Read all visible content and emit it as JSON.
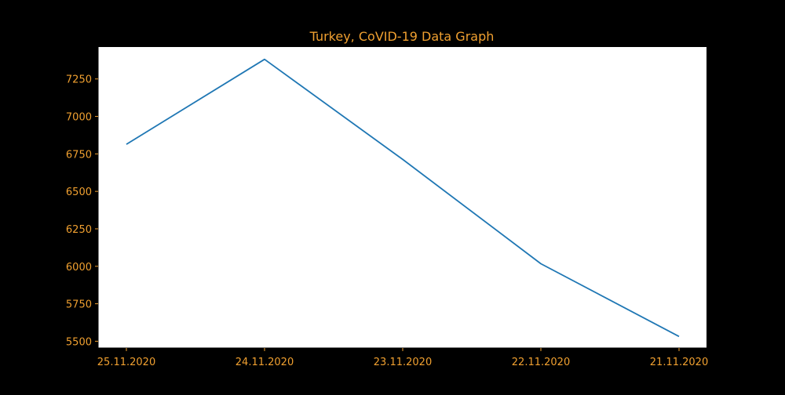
{
  "chart_data": {
    "type": "line",
    "title": "Turkey, CoVID-19 Data Graph",
    "xlabel": "",
    "ylabel": "",
    "categories": [
      "25.11.2020",
      "24.11.2020",
      "23.11.2020",
      "22.11.2020",
      "21.11.2020"
    ],
    "series": [
      {
        "values": [
          6814,
          7381,
          6713,
          6017,
          5532
        ]
      }
    ],
    "ylim": [
      5455,
      7463
    ],
    "yticks": [
      5500,
      5750,
      6000,
      6250,
      6500,
      6750,
      7000,
      7250
    ],
    "grid": false,
    "legend": "none",
    "colors": {
      "background": "#000000",
      "plot_area": "#ffffff",
      "text": "#f0a030",
      "line": "#1f77b4",
      "axis": "#000000"
    }
  }
}
